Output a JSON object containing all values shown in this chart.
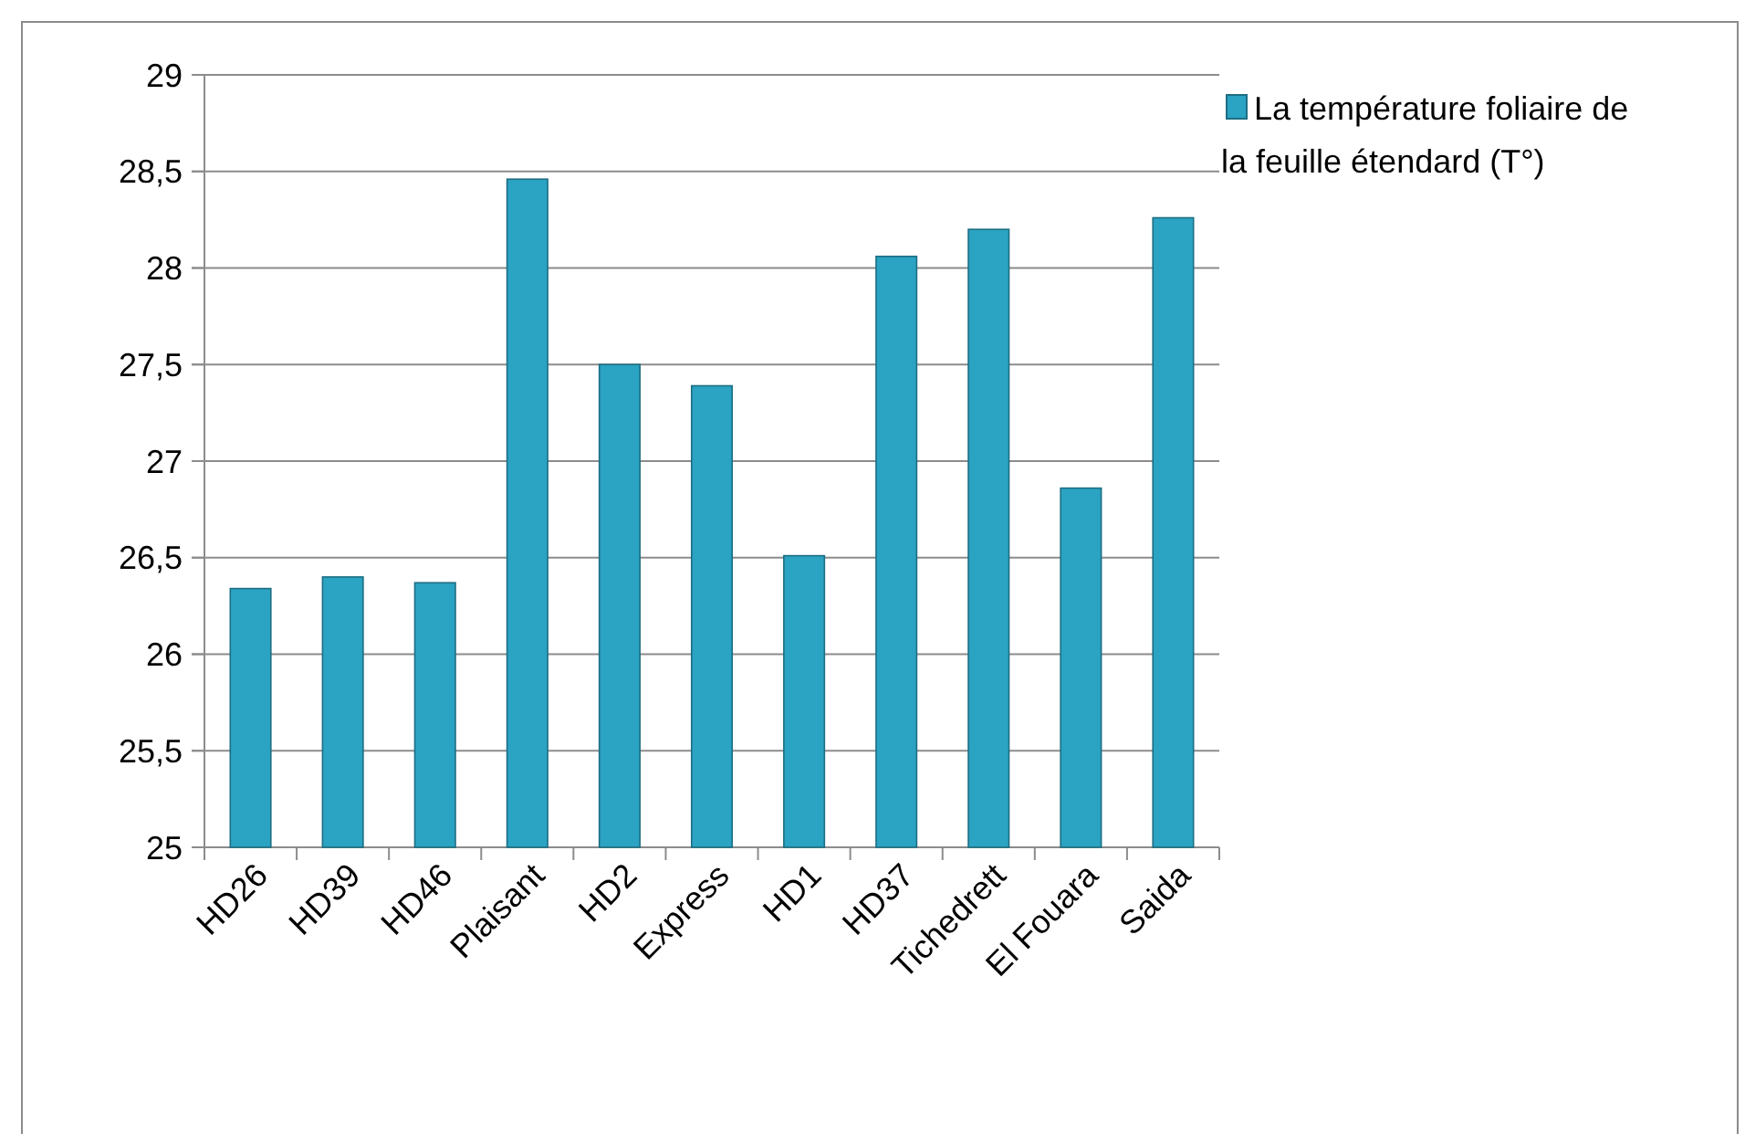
{
  "chart_data": {
    "type": "bar",
    "categories": [
      "HD26",
      "HD39",
      "HD46",
      "Plaisant",
      "HD2",
      "Express",
      "HD1",
      "HD37",
      "Tichedrett",
      "El Fouara",
      "Saida"
    ],
    "series": [
      {
        "name": "La température foliaire de la feuille étendard (T°)",
        "color": "#2ba3c2",
        "values": [
          26.34,
          26.4,
          26.37,
          28.46,
          27.5,
          27.39,
          26.51,
          28.06,
          28.2,
          26.86,
          28.26
        ]
      }
    ],
    "ylim": [
      25,
      29
    ],
    "yticks": [
      {
        "value": 25,
        "label": "25"
      },
      {
        "value": 25.5,
        "label": "25,5"
      },
      {
        "value": 26,
        "label": "26"
      },
      {
        "value": 26.5,
        "label": "26,5"
      },
      {
        "value": 27,
        "label": "27"
      },
      {
        "value": 27.5,
        "label": "27,5"
      },
      {
        "value": 28,
        "label": "28"
      },
      {
        "value": 28.5,
        "label": "28,5"
      },
      {
        "value": 29,
        "label": "29"
      }
    ],
    "grid": "y",
    "legend": "top right"
  }
}
